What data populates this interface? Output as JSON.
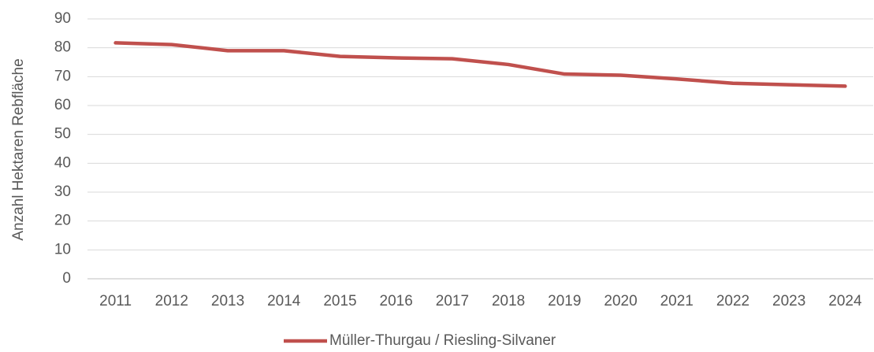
{
  "chart_data": {
    "type": "line",
    "y_label": "Anzahl Hektaren Rebfläche",
    "categories": [
      "2011",
      "2012",
      "2013",
      "2014",
      "2015",
      "2016",
      "2017",
      "2018",
      "2019",
      "2020",
      "2021",
      "2022",
      "2023",
      "2024"
    ],
    "series": [
      {
        "name": "Müller-Thurgau / Riesling-Silvaner",
        "color": "#c0504d",
        "values": [
          81.7,
          81.1,
          79.0,
          79.0,
          77.0,
          76.5,
          76.2,
          74.2,
          70.9,
          70.5,
          69.2,
          67.7,
          67.2,
          66.7
        ]
      }
    ],
    "ylim": [
      0,
      90
    ],
    "yticks": [
      0,
      10,
      20,
      30,
      40,
      50,
      60,
      70,
      80,
      90
    ],
    "grid": true,
    "legend": "bottom"
  }
}
